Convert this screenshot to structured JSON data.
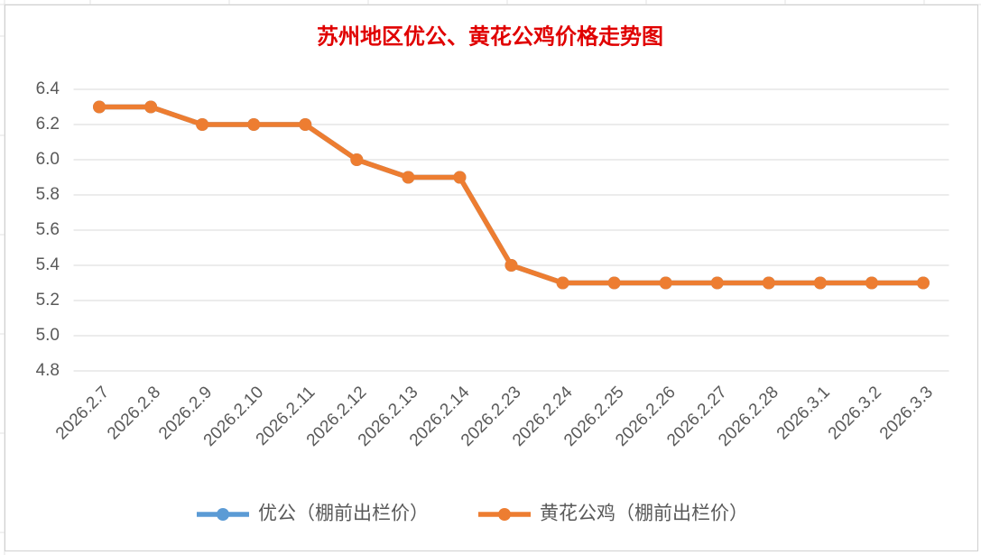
{
  "chart_data": {
    "type": "line",
    "title": "苏州地区优公、黄花公鸡价格走势图",
    "categories": [
      "2026.2.7",
      "2026.2.8",
      "2026.2.9",
      "2026.2.10",
      "2026.2.11",
      "2026.2.12",
      "2026.2.13",
      "2026.2.14",
      "2026.2.23",
      "2026.2.24",
      "2026.2.25",
      "2026.2.26",
      "2026.2.27",
      "2026.2.28",
      "2026.3.1",
      "2026.3.2",
      "2026.3.3"
    ],
    "series": [
      {
        "name": "优公（棚前出栏价）",
        "color": "#5b9bd5",
        "values": [
          6.3,
          6.3,
          6.2,
          6.2,
          6.2,
          6.0,
          5.9,
          5.9,
          5.4,
          5.3,
          5.3,
          5.3,
          5.3,
          5.3,
          5.3,
          5.3,
          5.3
        ]
      },
      {
        "name": "黄花公鸡（棚前出栏价）",
        "color": "#ed7d31",
        "values": [
          6.3,
          6.3,
          6.2,
          6.2,
          6.2,
          6.0,
          5.9,
          5.9,
          5.4,
          5.3,
          5.3,
          5.3,
          5.3,
          5.3,
          5.3,
          5.3,
          5.3
        ]
      }
    ],
    "ylim": [
      4.8,
      6.4
    ],
    "yticks": [
      4.8,
      {
        "value": 5,
        "label": "5.0"
      },
      5.2,
      5.4,
      5.6,
      5.8,
      {
        "value": 6,
        "label": "6.0"
      },
      6.2,
      6.4
    ],
    "grid": true,
    "legend": "bottom"
  }
}
